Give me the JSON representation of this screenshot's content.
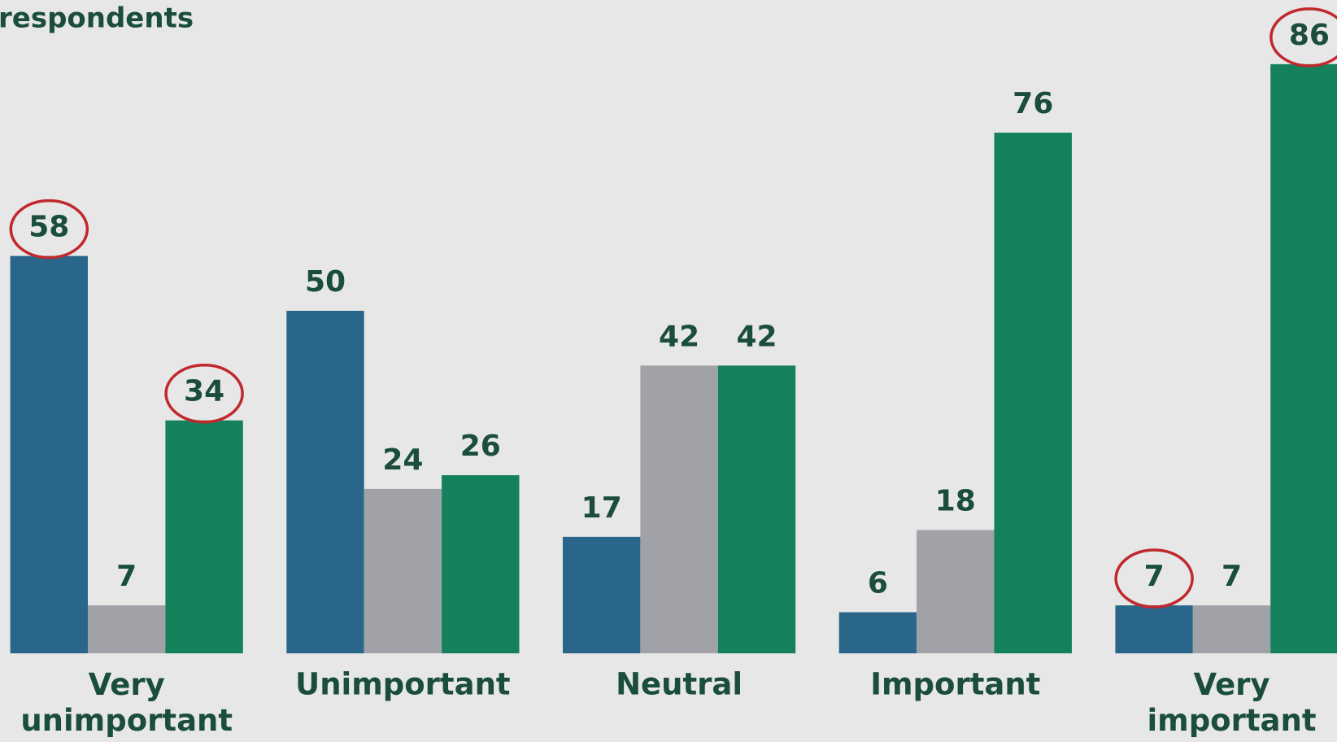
{
  "chart_data": {
    "type": "bar",
    "title": "respondents",
    "categories": [
      "Very unimportant",
      "Unimportant",
      "Neutral",
      "Important",
      "Very important"
    ],
    "series": [
      {
        "color": "#2a6689",
        "values": [
          58,
          50,
          17,
          6,
          7
        ],
        "circled": [
          0,
          4
        ]
      },
      {
        "color": "#a0a2a8",
        "values": [
          7,
          24,
          42,
          18,
          7
        ],
        "circled": []
      },
      {
        "color": "#14805c",
        "values": [
          34,
          26,
          42,
          76,
          86
        ],
        "circled": [
          0,
          4
        ]
      }
    ],
    "ylim": [
      0,
      95
    ],
    "circle_color": "#c0282d"
  }
}
